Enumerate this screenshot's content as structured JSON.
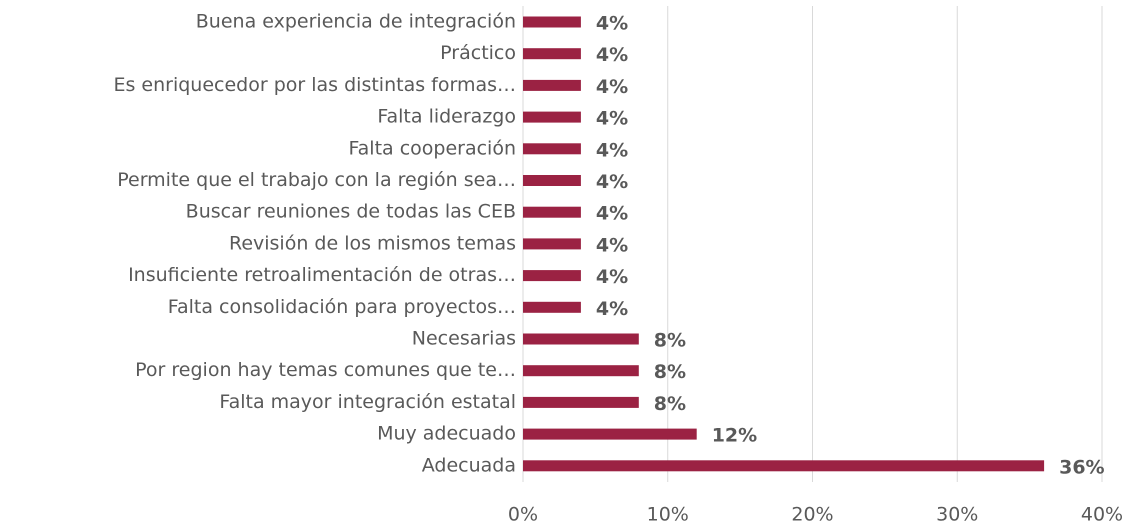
{
  "chart_data": {
    "type": "bar",
    "orientation": "horizontal",
    "categories": [
      "Buena experiencia de integración",
      "Práctico",
      "Es enriquecedor por las distintas formas…",
      "Falta liderazgo",
      "Falta cooperación",
      "Permite que el trabajo con la región sea…",
      "Buscar reuniones de todas las CEB",
      "Revisión de los mismos temas",
      "Insuficiente retroalimentación de otras…",
      "Falta consolidación para proyectos…",
      "Necesarias",
      "Por region hay temas comunes que te…",
      "Falta mayor integración estatal",
      "Muy adecuado",
      "Adecuada"
    ],
    "values": [
      4,
      4,
      4,
      4,
      4,
      4,
      4,
      4,
      4,
      4,
      8,
      8,
      8,
      12,
      36
    ],
    "value_labels": [
      "4%",
      "4%",
      "4%",
      "4%",
      "4%",
      "4%",
      "4%",
      "4%",
      "4%",
      "4%",
      "8%",
      "8%",
      "8%",
      "12%",
      "36%"
    ],
    "color": "#9b2243",
    "xlim": [
      0,
      40
    ],
    "xticks": [
      {
        "value": 0,
        "label": "0%"
      },
      {
        "value": 10,
        "label": "10%"
      },
      {
        "value": 20,
        "label": "20%"
      },
      {
        "value": 30,
        "label": "30%"
      },
      {
        "value": 40,
        "label": "40%"
      }
    ],
    "grid": true
  }
}
